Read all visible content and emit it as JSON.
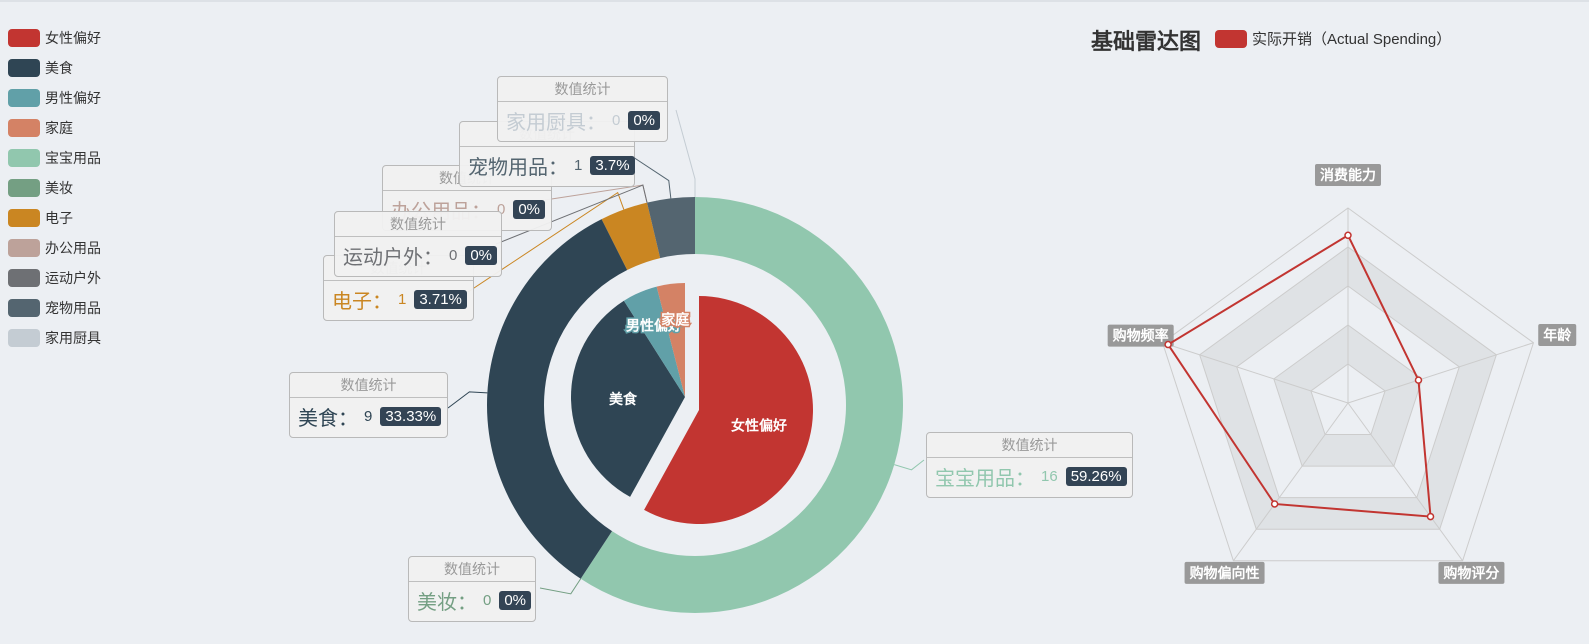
{
  "legend": {
    "items": [
      {
        "label": "女性偏好",
        "color": "#c23531"
      },
      {
        "label": "美食",
        "color": "#2f4554"
      },
      {
        "label": "男性偏好",
        "color": "#61a0a8"
      },
      {
        "label": "家庭",
        "color": "#d48265"
      },
      {
        "label": "宝宝用品",
        "color": "#91c7ae"
      },
      {
        "label": "美妆",
        "color": "#749f83"
      },
      {
        "label": "电子",
        "color": "#ca8622"
      },
      {
        "label": "办公用品",
        "color": "#bda29a"
      },
      {
        "label": "运动户外",
        "color": "#6e7074"
      },
      {
        "label": "宠物用品",
        "color": "#546570"
      },
      {
        "label": "家用厨具",
        "color": "#c4ccd3"
      }
    ]
  },
  "label_header": "数值统计",
  "radar_header": {
    "title": "基础雷达图",
    "legend_label": "实际开销（Actual Spending）",
    "legend_color": "#c23531"
  },
  "chart_data": [
    {
      "type": "pie",
      "subtype": "nested-pie",
      "inner": [
        {
          "name": "女性偏好",
          "value": 58,
          "color": "#c23531"
        },
        {
          "name": "美食",
          "value": 33,
          "color": "#2f4554"
        },
        {
          "name": "男性偏好",
          "value": 5,
          "color": "#61a0a8"
        },
        {
          "name": "家庭",
          "value": 4,
          "color": "#d48265"
        }
      ],
      "outer": [
        {
          "name": "宝宝用品",
          "value": 16,
          "percent": "59.26%",
          "color": "#91c7ae"
        },
        {
          "name": "美妆",
          "value": 0,
          "percent": "0%",
          "color": "#749f83"
        },
        {
          "name": "美食",
          "value": 9,
          "percent": "33.33%",
          "color": "#2f4554"
        },
        {
          "name": "电子",
          "value": 1,
          "percent": "3.71%",
          "color": "#ca8622"
        },
        {
          "name": "办公用品",
          "value": 0,
          "percent": "0%",
          "color": "#bda29a"
        },
        {
          "name": "运动户外",
          "value": 0,
          "percent": "0%",
          "color": "#6e7074"
        },
        {
          "name": "宠物用品",
          "value": 1,
          "percent": "3.7%",
          "color": "#546570"
        },
        {
          "name": "家用厨具",
          "value": 0,
          "percent": "0%",
          "color": "#c4ccd3"
        }
      ]
    },
    {
      "type": "radar",
      "title": "基础雷达图",
      "indicators": [
        "消费能力",
        "年龄",
        "购物评分",
        "购物偏向性",
        "购物频率"
      ],
      "series": [
        {
          "name": "实际开销（Actual Spending）",
          "values": [
            0.86,
            0.38,
            0.72,
            0.64,
            0.97
          ],
          "color": "#c23531"
        }
      ]
    }
  ]
}
